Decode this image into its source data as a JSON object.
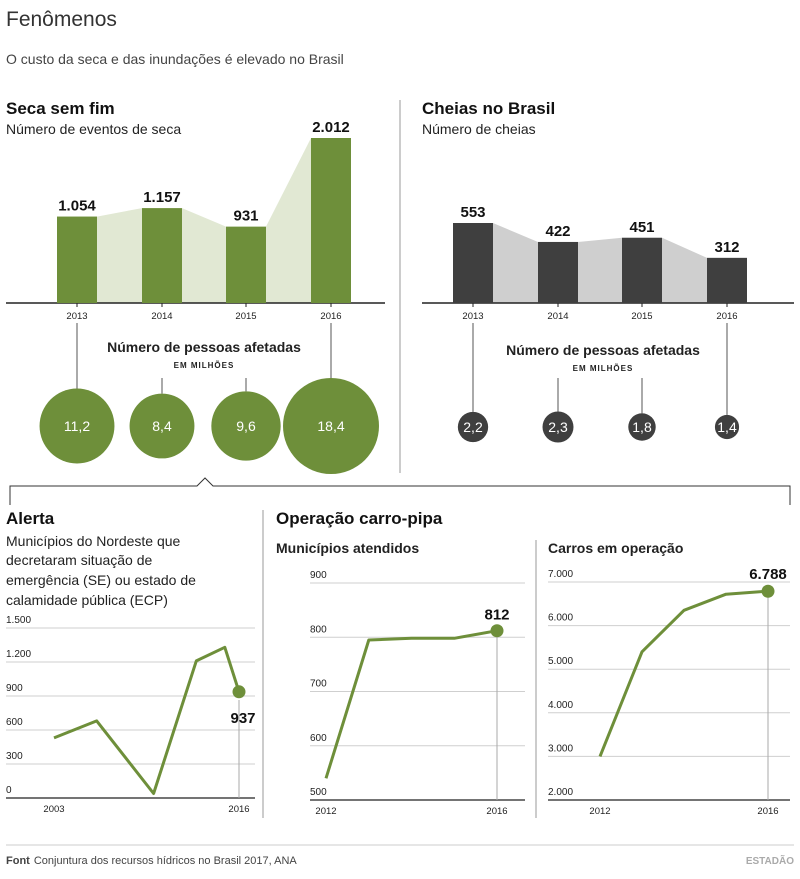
{
  "header": {
    "title": "Fenômenos",
    "subtitle": "O custo da seca e das inundações é elevado no Brasil"
  },
  "drought": {
    "heading": "Seca sem fim",
    "subheading": "Número de eventos de seca",
    "people_label": "Número de pessoas afetadas",
    "people_unit": "EM MILHÕES",
    "color": "#6e8f3a",
    "fill_color": "#e1e8d3"
  },
  "floods": {
    "heading": "Cheias no Brasil",
    "subheading": "Número de cheias",
    "people_label": "Número de pessoas afetadas",
    "people_unit": "EM MILHÕES",
    "color": "#3f3f3f",
    "fill_color": "#cfcfcf"
  },
  "alerta": {
    "heading": "Alerta",
    "description": [
      "Municípios do Nordeste que",
      "decretaram situação de",
      "emergência (SE) ou estado de",
      "calamidade pública (ECP)"
    ]
  },
  "carropipa": {
    "heading": "Operação carro-pipa",
    "sub_left": "Municípios atendidos",
    "sub_right": "Carros em operação"
  },
  "footer": {
    "source_label": "Font",
    "source_text": "Conjuntura dos recursos hídricos no Brasil 2017, ANA",
    "brand": "ESTADÃO"
  },
  "chart_data": [
    {
      "type": "bar",
      "id": "drought_events",
      "categories": [
        "2013",
        "2014",
        "2015",
        "2016"
      ],
      "values": [
        1054,
        1157,
        931,
        2012
      ],
      "value_labels": [
        "1.054",
        "1.157",
        "931",
        "2.012"
      ],
      "ylim": [
        0,
        2012
      ]
    },
    {
      "type": "bubble",
      "id": "drought_people",
      "categories": [
        "2013",
        "2014",
        "2015",
        "2016"
      ],
      "values": [
        11.2,
        8.4,
        9.6,
        18.4
      ],
      "value_labels": [
        "11,2",
        "8,4",
        "9,6",
        "18,4"
      ]
    },
    {
      "type": "bar",
      "id": "flood_events",
      "categories": [
        "2013",
        "2014",
        "2015",
        "2016"
      ],
      "values": [
        553,
        422,
        451,
        312
      ],
      "value_labels": [
        "553",
        "422",
        "451",
        "312"
      ]
    },
    {
      "type": "bubble",
      "id": "flood_people",
      "categories": [
        "2013",
        "2014",
        "2015",
        "2016"
      ],
      "values": [
        2.2,
        2.3,
        1.8,
        1.4
      ],
      "value_labels": [
        "2,2",
        "2,3",
        "1,8",
        "1,4"
      ]
    },
    {
      "type": "line",
      "id": "alerta",
      "x": [
        2003,
        2006,
        2010,
        2013,
        2015,
        2016
      ],
      "y": [
        530,
        680,
        40,
        1210,
        1330,
        937
      ],
      "ylim": [
        0,
        1500
      ],
      "yticks": [
        0,
        300,
        600,
        900,
        1200,
        1500
      ],
      "ytick_labels": [
        "0",
        "300",
        "600",
        "900",
        "1.200",
        "1.500"
      ],
      "xtick_labels": [
        "2003",
        "2016"
      ],
      "end_label": "937"
    },
    {
      "type": "line",
      "id": "municipios",
      "x": [
        2012,
        2013,
        2014,
        2015,
        2016
      ],
      "y": [
        540,
        795,
        798,
        798,
        812
      ],
      "ylim": [
        500,
        900
      ],
      "yticks": [
        500,
        600,
        700,
        800,
        900
      ],
      "ytick_labels": [
        "500",
        "600",
        "700",
        "800",
        "900"
      ],
      "xtick_labels": [
        "2012",
        "2016"
      ],
      "end_label": "812"
    },
    {
      "type": "line",
      "id": "carros",
      "x": [
        2012,
        2013,
        2014,
        2015,
        2016
      ],
      "y": [
        3000,
        5400,
        6350,
        6720,
        6788
      ],
      "ylim": [
        2000,
        7000
      ],
      "yticks": [
        2000,
        3000,
        4000,
        5000,
        6000,
        7000
      ],
      "ytick_labels": [
        "2.000",
        "3.000",
        "4.000",
        "5.000",
        "6.000",
        "7.000"
      ],
      "xtick_labels": [
        "2012",
        "2016"
      ],
      "end_label": "6.788"
    }
  ]
}
